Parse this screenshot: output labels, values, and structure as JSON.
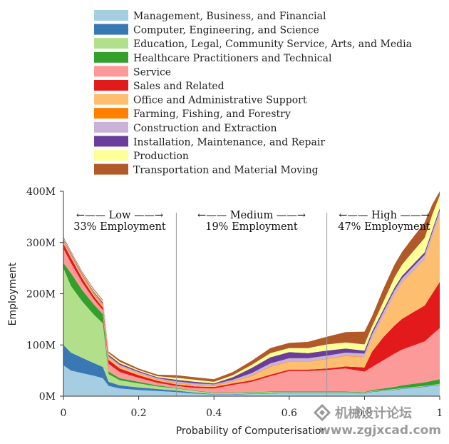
{
  "chart_data": {
    "type": "area",
    "stacked": true,
    "xlabel": "Probability of Computerisation",
    "ylabel": "Employment",
    "xlim": [
      0,
      1
    ],
    "ylim": [
      0,
      400
    ],
    "x_ticks": [
      "0",
      "0.2",
      "0.4",
      "0.6",
      "0.8",
      "1"
    ],
    "y_ticks": [
      "0M",
      "100M",
      "200M",
      "300M",
      "400M"
    ],
    "dividers": [
      0.3,
      0.7
    ],
    "regions": [
      {
        "label": "←—— Low ——→",
        "share": "33% Employment"
      },
      {
        "label": "←—— Medium ——→",
        "share": "19% Employment"
      },
      {
        "label": "←—— High ——→",
        "share": "47% Employment"
      }
    ],
    "legend_position": "top-left",
    "x": [
      0,
      0.02,
      0.05,
      0.08,
      0.105,
      0.12,
      0.15,
      0.2,
      0.25,
      0.3,
      0.35,
      0.4,
      0.45,
      0.5,
      0.55,
      0.6,
      0.65,
      0.7,
      0.75,
      0.8,
      0.82,
      0.85,
      0.88,
      0.9,
      0.93,
      0.96,
      0.98,
      1
    ],
    "series": [
      {
        "name": "Management, Business, and Financial",
        "color": "#a6cee3",
        "values": [
          60,
          50,
          45,
          40,
          35,
          20,
          15,
          12,
          10,
          8,
          5,
          3,
          3,
          4,
          5,
          6,
          6,
          6,
          6,
          5,
          8,
          10,
          12,
          14,
          16,
          18,
          20,
          22
        ]
      },
      {
        "name": "Computer, Engineering, and Science",
        "color": "#3a78b4",
        "values": [
          40,
          35,
          30,
          25,
          22,
          8,
          6,
          5,
          4,
          3,
          2,
          1,
          1,
          1,
          1,
          1,
          1,
          1,
          1,
          1,
          1,
          1,
          1,
          1,
          1,
          1,
          1,
          1
        ]
      },
      {
        "name": "Education, Legal, Community Service, Arts, and Media",
        "color": "#b2df8a",
        "values": [
          150,
          130,
          110,
          95,
          85,
          15,
          10,
          8,
          5,
          4,
          3,
          2,
          2,
          2,
          2,
          1,
          1,
          1,
          1,
          1,
          1,
          1,
          1,
          1,
          1,
          1,
          1,
          1
        ]
      },
      {
        "name": "Healthcare Practitioners and Technical",
        "color": "#33a02c",
        "values": [
          10,
          25,
          22,
          20,
          18,
          5,
          4,
          3,
          2,
          1,
          1,
          1,
          1,
          1,
          1,
          1,
          1,
          1,
          1,
          1,
          2,
          3,
          4,
          5,
          6,
          7,
          8,
          9
        ]
      },
      {
        "name": "Service",
        "color": "#fb9a99",
        "values": [
          28,
          20,
          15,
          10,
          8,
          15,
          12,
          8,
          5,
          4,
          5,
          8,
          15,
          20,
          30,
          40,
          40,
          42,
          45,
          40,
          45,
          55,
          65,
          70,
          75,
          80,
          90,
          100
        ]
      },
      {
        "name": "Sales and Related",
        "color": "#e31a1c",
        "values": [
          10,
          10,
          8,
          6,
          5,
          8,
          7,
          5,
          4,
          3,
          3,
          3,
          3,
          3,
          3,
          3,
          3,
          3,
          4,
          8,
          30,
          45,
          55,
          60,
          65,
          70,
          80,
          90
        ]
      },
      {
        "name": "Office and Administrative Support",
        "color": "#fdbf6f",
        "values": [
          3,
          3,
          3,
          3,
          3,
          4,
          4,
          3,
          2,
          2,
          2,
          2,
          3,
          8,
          15,
          15,
          15,
          18,
          20,
          20,
          25,
          40,
          60,
          70,
          80,
          90,
          110,
          130
        ]
      },
      {
        "name": "Farming, Fishing, and Forestry",
        "color": "#ff7f00",
        "values": [
          2,
          2,
          2,
          2,
          2,
          1,
          1,
          1,
          1,
          1,
          1,
          1,
          1,
          1,
          1,
          1,
          1,
          1,
          1,
          1,
          1,
          1,
          1,
          1,
          1,
          1,
          1,
          1
        ]
      },
      {
        "name": "Construction and Extraction",
        "color": "#cab2d6",
        "values": [
          2,
          2,
          2,
          2,
          2,
          2,
          2,
          2,
          2,
          3,
          3,
          2,
          3,
          5,
          6,
          6,
          6,
          6,
          6,
          6,
          8,
          8,
          8,
          8,
          8,
          8,
          8,
          8
        ]
      },
      {
        "name": "Installation, Maintenance, and Repair",
        "color": "#6a3d9a",
        "values": [
          2,
          2,
          2,
          2,
          3,
          3,
          3,
          2,
          2,
          3,
          3,
          2,
          5,
          10,
          12,
          12,
          10,
          10,
          8,
          6,
          5,
          5,
          5,
          5,
          5,
          5,
          5,
          5
        ]
      },
      {
        "name": "Production",
        "color": "#ffff99",
        "values": [
          2,
          2,
          2,
          3,
          3,
          3,
          3,
          2,
          2,
          4,
          4,
          3,
          4,
          6,
          8,
          8,
          10,
          12,
          12,
          12,
          10,
          15,
          20,
          22,
          25,
          28,
          30,
          25
        ]
      },
      {
        "name": "Transportation and Material Moving",
        "color": "#b15928",
        "values": [
          2,
          2,
          2,
          2,
          2,
          3,
          4,
          3,
          3,
          5,
          5,
          5,
          6,
          8,
          10,
          10,
          12,
          15,
          20,
          25,
          20,
          25,
          25,
          25,
          28,
          30,
          20,
          8
        ]
      }
    ]
  },
  "watermark": {
    "logo_text": "机械设计论坛",
    "url": "www.zgjxcad.com"
  }
}
